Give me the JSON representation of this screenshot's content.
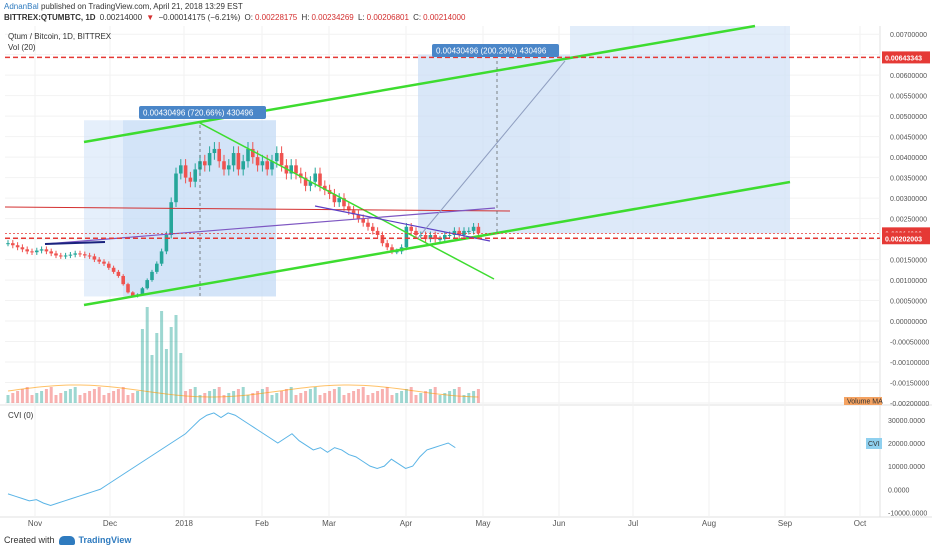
{
  "header": {
    "author": "AdnanBal",
    "published_text": "published on TradingView.com, April 21, 2018 13:29 EST",
    "symbol": "BITTREX:QTUMBTC, 1D",
    "price": "0.00214000",
    "change_arrow": "▼",
    "change": "−0.00014175 (−6.21%)",
    "o_label": "O:",
    "o_value": "0.00228175",
    "h_label": "H:",
    "h_value": "0.00234269",
    "l_label": "L:",
    "l_value": "0.00206801",
    "c_label": "C:",
    "c_value": "0.00214000"
  },
  "main_pane": {
    "title": "Qtum / Bitcoin, 1D, BITTREX",
    "vol_label": "Vol (20)",
    "volume_ma_label": "Volume MA",
    "price_axis_ticks": [
      "0.00700000",
      "0.00650000",
      "0.00600000",
      "0.00550000",
      "0.00500000",
      "0.00450000",
      "0.00400000",
      "0.00350000",
      "0.00300000",
      "0.00250000",
      "0.00200000",
      "0.00150000",
      "0.00100000",
      "0.00050000",
      "0.00000000",
      "-0.00050000",
      "-0.00100000",
      "-0.00150000",
      "-0.00200000"
    ],
    "price_tags": [
      {
        "text": "0.00643343",
        "color": "#e53935"
      },
      {
        "text": "0.00214000",
        "color": "#e53935"
      },
      {
        "text": "0.00202003",
        "color": "#e53935"
      }
    ],
    "callouts": [
      {
        "text": "0.00430496 (720.66%) 430496"
      },
      {
        "text": "0.00430496 (200.29%) 430496"
      }
    ]
  },
  "cvi_pane": {
    "title": "CVI (0)",
    "badge": "CVI",
    "axis_ticks": [
      "30000.0000",
      "20000.0000",
      "10000.0000",
      "0.0000",
      "-10000.0000"
    ]
  },
  "time_axis": [
    "Nov",
    "Dec",
    "2018",
    "Feb",
    "Mar",
    "Apr",
    "May",
    "Jun",
    "Jul",
    "Aug",
    "Sep",
    "Oct"
  ],
  "footer": {
    "created_with": "Created with",
    "brand": "TradingView"
  },
  "colors": {
    "up": "#26a69a",
    "down": "#ef5350",
    "channel": "#3ddc2f",
    "red_dashed": "#e53935",
    "projection": "#cfe1f7",
    "cvi_line": "#5ab4e6"
  },
  "chart_data": {
    "type": "candlestick",
    "title": "Qtum / Bitcoin, 1D, BITTREX",
    "x_axis_labels": [
      "Nov",
      "Dec",
      "2018",
      "Feb",
      "Mar",
      "Apr",
      "May",
      "Jun",
      "Jul",
      "Aug",
      "Sep",
      "Oct"
    ],
    "ylim": [
      -0.002,
      0.0072
    ],
    "close_series": [
      0.0019,
      0.00185,
      0.0018,
      0.00175,
      0.0017,
      0.00168,
      0.00172,
      0.00175,
      0.0017,
      0.00165,
      0.0016,
      0.00158,
      0.0016,
      0.00162,
      0.00165,
      0.00163,
      0.0016,
      0.00158,
      0.0015,
      0.00145,
      0.0014,
      0.0013,
      0.0012,
      0.0011,
      0.0009,
      0.0007,
      0.0006,
      0.00065,
      0.0008,
      0.001,
      0.0012,
      0.0014,
      0.0017,
      0.0021,
      0.0029,
      0.0036,
      0.0038,
      0.0035,
      0.0034,
      0.0037,
      0.0039,
      0.0038,
      0.0041,
      0.0042,
      0.0039,
      0.0037,
      0.0038,
      0.0041,
      0.0037,
      0.0039,
      0.0042,
      0.004,
      0.0038,
      0.0039,
      0.0037,
      0.0039,
      0.0041,
      0.0038,
      0.0036,
      0.0038,
      0.0036,
      0.0035,
      0.0033,
      0.0034,
      0.0036,
      0.0033,
      0.0032,
      0.0031,
      0.0029,
      0.003,
      0.0028,
      0.0027,
      0.0026,
      0.0025,
      0.0024,
      0.0023,
      0.0022,
      0.0021,
      0.0019,
      0.0018,
      0.0017,
      0.0017,
      0.0018,
      0.0023,
      0.0022,
      0.0021,
      0.0021,
      0.002,
      0.0021,
      0.002,
      0.002,
      0.0021,
      0.0021,
      0.0022,
      0.0021,
      0.0022,
      0.0022,
      0.0023,
      0.00214
    ],
    "annotations": [
      {
        "label": "0.00430496 (720.66%) 430496",
        "from": 0.0006,
        "to": 0.0049
      },
      {
        "label": "0.00430496 (200.29%) 430496",
        "from": 0.00214,
        "to": 0.00643343
      }
    ],
    "horizontal_levels": [
      0.00643343,
      0.00214,
      0.00202003
    ],
    "cvi_series": [
      -2000,
      -3000,
      -4000,
      -5000,
      -4500,
      -6000,
      -7000,
      -6000,
      -5000,
      -4000,
      -3000,
      -2000,
      -1000,
      0,
      2000,
      4000,
      6000,
      8000,
      10000,
      12000,
      14000,
      16000,
      18000,
      20000,
      22000,
      24000,
      27000,
      30000,
      32000,
      33000,
      31000,
      33000,
      32000,
      30000,
      28000,
      26000,
      24000,
      22000,
      20000,
      22000,
      24000,
      21000,
      19000,
      17000,
      18000,
      16000,
      18000,
      17000,
      15000,
      14000,
      12000,
      10000,
      9000,
      10000,
      13000,
      11000,
      9000,
      10000,
      14000,
      17000,
      18000,
      19000,
      20000,
      18000
    ]
  }
}
